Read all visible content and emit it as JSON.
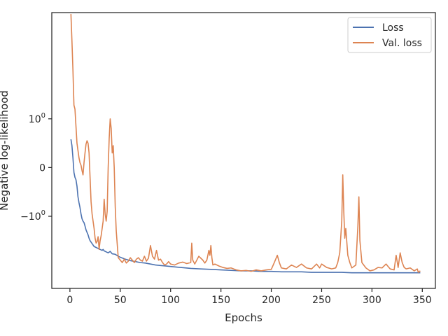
{
  "chart_data": {
    "type": "line",
    "xlabel": "Epochs",
    "ylabel": "Negative log-likelihood",
    "xlim": [
      -18,
      363
    ],
    "x_ticks": [
      0,
      50,
      100,
      150,
      200,
      250,
      300,
      350
    ],
    "y_ticks": [
      {
        "label": "10",
        "exp": "0",
        "value": 1.0
      },
      {
        "label": "0",
        "exp": "",
        "value": 0.0
      },
      {
        "label": "−10",
        "exp": "0",
        "value": -1.0
      }
    ],
    "ylim": [
      -2.48,
      3.18
    ],
    "grid": false,
    "legend": "top-right",
    "colors": {
      "Loss": "#4c72b0",
      "Val. loss": "#dd8452"
    },
    "series": [
      {
        "name": "Loss",
        "x": [
          1,
          2,
          3,
          4,
          5,
          6,
          7,
          8,
          9,
          10,
          11,
          12,
          13,
          14,
          15,
          16,
          17,
          18,
          19,
          20,
          22,
          24,
          26,
          28,
          30,
          32,
          33,
          34,
          36,
          38,
          40,
          42,
          45,
          48,
          50,
          55,
          60,
          65,
          70,
          75,
          80,
          85,
          90,
          95,
          100,
          110,
          120,
          130,
          140,
          150,
          160,
          170,
          180,
          190,
          200,
          210,
          220,
          230,
          240,
          250,
          260,
          270,
          280,
          290,
          300,
          310,
          320,
          330,
          340,
          348
        ],
        "y": [
          0.58,
          0.45,
          0.2,
          -0.1,
          -0.2,
          -0.25,
          -0.38,
          -0.6,
          -0.72,
          -0.82,
          -0.95,
          -1.05,
          -1.1,
          -1.13,
          -1.2,
          -1.28,
          -1.33,
          -1.38,
          -1.45,
          -1.5,
          -1.56,
          -1.62,
          -1.64,
          -1.66,
          -1.68,
          -1.7,
          -1.68,
          -1.71,
          -1.73,
          -1.75,
          -1.72,
          -1.77,
          -1.78,
          -1.82,
          -1.84,
          -1.88,
          -1.91,
          -1.93,
          -1.95,
          -1.96,
          -1.98,
          -2.0,
          -2.01,
          -2.02,
          -2.03,
          -2.05,
          -2.07,
          -2.08,
          -2.09,
          -2.1,
          -2.11,
          -2.12,
          -2.12,
          -2.13,
          -2.13,
          -2.14,
          -2.14,
          -2.14,
          -2.15,
          -2.15,
          -2.15,
          -2.15,
          -2.16,
          -2.16,
          -2.16,
          -2.16,
          -2.16,
          -2.16,
          -2.16,
          -2.16
        ]
      },
      {
        "name": "Val. loss",
        "x": [
          1,
          2,
          3,
          4,
          5,
          6,
          7,
          8,
          9,
          10,
          11,
          12,
          13,
          14,
          15,
          16,
          17,
          18,
          19,
          20,
          21,
          22,
          23,
          24,
          25,
          26,
          27,
          28,
          29,
          30,
          31,
          32,
          33,
          34,
          35,
          36,
          37,
          38,
          39,
          40,
          41,
          42,
          43,
          44,
          45,
          46,
          48,
          50,
          52,
          54,
          56,
          58,
          60,
          62,
          64,
          66,
          68,
          70,
          72,
          74,
          76,
          78,
          80,
          82,
          84,
          86,
          88,
          90,
          92,
          94,
          96,
          98,
          100,
          104,
          108,
          112,
          116,
          120,
          121,
          122,
          124,
          128,
          132,
          134,
          136,
          138,
          139,
          140,
          141,
          142,
          144,
          148,
          152,
          156,
          160,
          165,
          170,
          175,
          180,
          185,
          190,
          195,
          200,
          203,
          206,
          208,
          210,
          215,
          220,
          225,
          230,
          235,
          240,
          245,
          248,
          250,
          255,
          260,
          264,
          266,
          268,
          270,
          271,
          272,
          273,
          274,
          276,
          278,
          280,
          284,
          286,
          287,
          288,
          290,
          294,
          298,
          302,
          306,
          310,
          314,
          318,
          322,
          324,
          326,
          328,
          330,
          332,
          334,
          338,
          342,
          345,
          346,
          348
        ],
        "y": [
          3.15,
          2.6,
          2.0,
          1.28,
          1.2,
          0.85,
          0.5,
          0.35,
          0.2,
          0.1,
          0.05,
          -0.06,
          -0.15,
          0.1,
          0.3,
          0.48,
          0.55,
          0.5,
          0.3,
          -0.2,
          -0.7,
          -0.95,
          -1.1,
          -1.25,
          -1.45,
          -1.55,
          -1.52,
          -1.42,
          -1.68,
          -1.5,
          -1.4,
          -1.25,
          -1.1,
          -0.65,
          -0.95,
          -1.1,
          -0.9,
          0.0,
          0.6,
          1.0,
          0.8,
          0.3,
          0.45,
          0.0,
          -0.8,
          -1.3,
          -1.85,
          -1.9,
          -1.95,
          -1.88,
          -1.96,
          -1.92,
          -1.85,
          -1.9,
          -1.95,
          -1.88,
          -1.85,
          -1.9,
          -1.92,
          -1.82,
          -1.92,
          -1.86,
          -1.6,
          -1.82,
          -1.88,
          -1.7,
          -1.9,
          -1.88,
          -1.95,
          -2.0,
          -1.98,
          -1.93,
          -1.98,
          -2.0,
          -1.96,
          -1.94,
          -1.97,
          -1.95,
          -1.55,
          -1.9,
          -1.98,
          -1.82,
          -1.9,
          -1.96,
          -1.9,
          -1.7,
          -1.8,
          -1.6,
          -1.85,
          -2.0,
          -1.98,
          -2.02,
          -2.05,
          -2.07,
          -2.06,
          -2.1,
          -2.12,
          -2.11,
          -2.13,
          -2.1,
          -2.12,
          -2.1,
          -2.09,
          -1.95,
          -1.8,
          -1.95,
          -2.06,
          -2.08,
          -2.0,
          -2.05,
          -1.98,
          -2.06,
          -2.08,
          -1.98,
          -2.06,
          -1.98,
          -2.05,
          -2.08,
          -2.06,
          -1.95,
          -1.75,
          -1.1,
          -0.15,
          -0.9,
          -1.45,
          -1.25,
          -1.8,
          -1.95,
          -2.06,
          -2.0,
          -1.2,
          -0.6,
          -1.5,
          -1.95,
          -2.06,
          -2.12,
          -2.1,
          -2.05,
          -2.06,
          -1.98,
          -2.08,
          -2.1,
          -1.8,
          -2.05,
          -1.75,
          -1.95,
          -2.05,
          -2.08,
          -2.06,
          -2.12,
          -2.08,
          -2.15,
          -2.12
        ]
      }
    ]
  }
}
